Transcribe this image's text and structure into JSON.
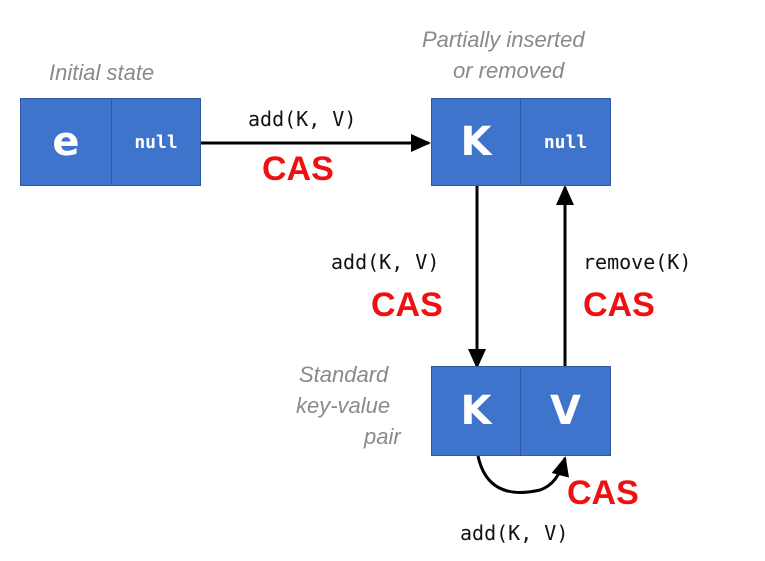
{
  "labels": {
    "initial_state": "Initial state",
    "partial_line1": "Partially inserted",
    "partial_line2": "or removed",
    "standard_line1": "Standard",
    "standard_line2": "key-value",
    "standard_line3": "pair"
  },
  "nodes": {
    "initial": {
      "key": "e",
      "value": "null"
    },
    "partial": {
      "key": "K",
      "value": "null"
    },
    "standard": {
      "key": "K",
      "value": "V"
    }
  },
  "transitions": {
    "initial_to_partial": {
      "op": "add(K, V)",
      "cas": "CAS"
    },
    "partial_to_standard": {
      "op": "add(K, V)",
      "cas": "CAS"
    },
    "standard_to_partial": {
      "op": "remove(K)",
      "cas": "CAS"
    },
    "standard_self": {
      "op": "add(K, V)",
      "cas": "CAS"
    }
  },
  "colors": {
    "cell": "#3f74cc",
    "cas": "#ee1111",
    "label": "#8a8a8a"
  }
}
